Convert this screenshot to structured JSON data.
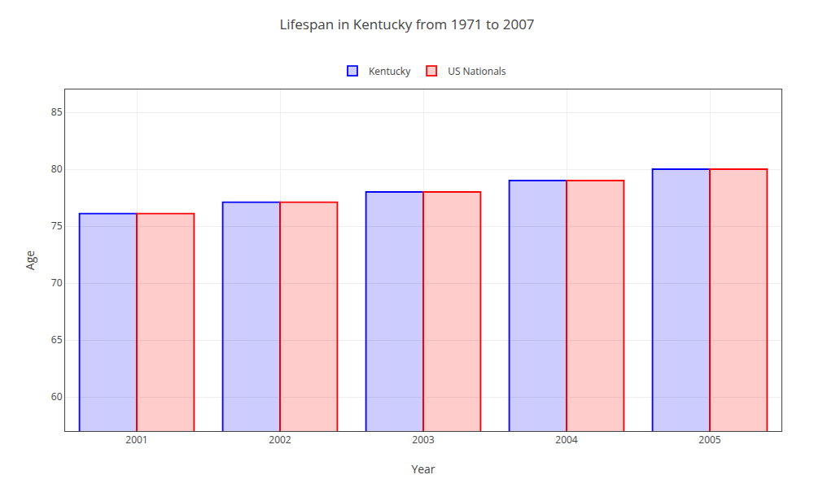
{
  "chart_data": {
    "type": "bar",
    "title": "Lifespan in Kentucky from 1971 to 2007",
    "xlabel": "Year",
    "ylabel": "Age",
    "categories": [
      "2001",
      "2002",
      "2003",
      "2004",
      "2005"
    ],
    "series": [
      {
        "name": "Kentucky",
        "color": "#0000ff",
        "values": [
          76.1,
          77.1,
          78.0,
          79.0,
          80.0
        ]
      },
      {
        "name": "US Nationals",
        "color": "#ff0000",
        "values": [
          76.1,
          77.1,
          78.0,
          79.0,
          80.0
        ]
      }
    ],
    "ylim": [
      57,
      87
    ],
    "yticks": [
      60,
      65,
      70,
      75,
      80,
      85
    ],
    "grid": true,
    "legend": "top"
  }
}
